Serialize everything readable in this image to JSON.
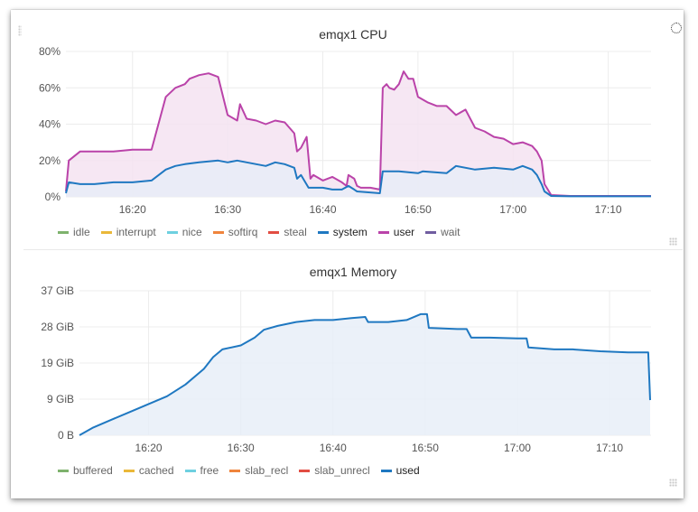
{
  "chart_data": [
    {
      "type": "area",
      "title": "emqx1 CPU",
      "y_tick_labels": [
        "0%",
        "20%",
        "40%",
        "60%",
        "80%"
      ],
      "ylim": [
        0,
        80
      ],
      "x_tick_labels": [
        "16:20",
        "16:30",
        "16:40",
        "16:50",
        "17:00",
        "17:10"
      ],
      "x_tick_minutes": [
        20,
        30,
        40,
        50,
        60,
        70
      ],
      "xlim": [
        13,
        74.5
      ],
      "legend": [
        "idle",
        "interrupt",
        "nice",
        "softirq",
        "steal",
        "system",
        "user",
        "wait"
      ],
      "legend_colors": [
        "#7eb26d",
        "#eab839",
        "#6ed0e0",
        "#ef843c",
        "#e24d42",
        "#1f78c1",
        "#ba43a9",
        "#705da0"
      ],
      "legend_active": [
        "system",
        "user"
      ],
      "series": [
        {
          "name": "user",
          "color": "#ba43a9",
          "fill": "#f5e3f1",
          "x": [
            13,
            13.3,
            14.5,
            16,
            18,
            20,
            22,
            23.5,
            24.5,
            25.5,
            26,
            27,
            28,
            29,
            30,
            31,
            31.3,
            32,
            33,
            34,
            35,
            36,
            37,
            37.3,
            37.7,
            38.3,
            38.7,
            39,
            40,
            41,
            42,
            42.5,
            42.7,
            43.3,
            43.6,
            44,
            45,
            46,
            46.3,
            46.7,
            47,
            47.5,
            48,
            48.5,
            49,
            49.5,
            50,
            51,
            52,
            53,
            54,
            55,
            56,
            57,
            58,
            59,
            60,
            61,
            62,
            62.5,
            63,
            63.3,
            64,
            66,
            70,
            74.5
          ],
          "values": [
            3,
            20,
            25,
            25,
            25,
            26,
            26,
            55,
            60,
            62,
            65,
            67,
            68,
            66,
            45,
            42,
            51,
            43,
            42,
            40,
            42,
            41,
            35,
            25,
            27,
            33,
            10,
            12,
            9,
            11,
            8,
            6,
            12,
            10,
            6,
            5,
            5,
            4,
            60,
            62,
            60,
            59,
            62,
            69,
            65,
            65,
            55,
            52,
            50,
            50,
            45,
            48,
            38,
            36,
            33,
            32,
            29,
            30,
            28,
            25,
            20,
            7,
            1,
            0.5,
            0.5,
            0.5
          ]
        },
        {
          "name": "system",
          "color": "#1f78c1",
          "fill": "#e8ecf7",
          "x": [
            13,
            13.3,
            14.5,
            16,
            18,
            20,
            22,
            23.5,
            24.5,
            25.5,
            27,
            29,
            30,
            31,
            32,
            33,
            34,
            35,
            36,
            37,
            37.3,
            37.7,
            38.5,
            40,
            41,
            42,
            42.7,
            43.3,
            43.6,
            46,
            46.3,
            48,
            50,
            50.5,
            53,
            54,
            56,
            58,
            60,
            61,
            62,
            62.5,
            63,
            63.3,
            64,
            66,
            70,
            74.5
          ],
          "values": [
            2,
            8,
            7,
            7,
            8,
            8,
            9,
            15,
            17,
            18,
            19,
            20,
            19,
            20,
            19,
            18,
            17,
            19,
            18,
            16,
            10,
            12,
            5,
            5,
            4,
            4,
            6,
            4,
            3,
            2,
            14,
            14,
            13,
            14,
            13,
            17,
            15,
            16,
            15,
            17,
            15,
            12,
            7,
            3,
            0.5,
            0.3,
            0.3,
            0.3
          ]
        }
      ]
    },
    {
      "type": "area",
      "title": "emqx1 Memory",
      "y_tick_labels": [
        "0 B",
        "9 GiB",
        "19 GiB",
        "28 GiB",
        "37 GiB"
      ],
      "ylim": [
        0,
        37
      ],
      "x_tick_labels": [
        "16:20",
        "16:30",
        "16:40",
        "16:50",
        "17:00",
        "17:10"
      ],
      "x_tick_minutes": [
        20,
        30,
        40,
        50,
        60,
        70
      ],
      "xlim": [
        12.5,
        74.5
      ],
      "legend": [
        "buffered",
        "cached",
        "free",
        "slab_recl",
        "slab_unrecl",
        "used"
      ],
      "legend_colors": [
        "#7eb26d",
        "#eab839",
        "#6ed0e0",
        "#ef843c",
        "#e24d42",
        "#1f78c1"
      ],
      "legend_active": [
        "used"
      ],
      "series": [
        {
          "name": "used",
          "color": "#1f78c1",
          "fill": "#e8eff8",
          "x": [
            12.5,
            14,
            16,
            18,
            20,
            22,
            24,
            26,
            27,
            28,
            30,
            31.5,
            32.5,
            34,
            36,
            38,
            40,
            42,
            43.5,
            43.8,
            46,
            48,
            49.5,
            50.2,
            50.4,
            53.5,
            54.5,
            55,
            57,
            60,
            61,
            61.2,
            64,
            66,
            69,
            72,
            74.2,
            74.4
          ],
          "values": [
            0,
            2,
            4,
            6,
            8,
            10,
            13,
            17,
            20,
            22,
            23,
            25,
            27,
            28,
            29,
            29.5,
            29.5,
            30,
            30.3,
            29,
            29,
            29.5,
            31,
            31,
            27.5,
            27.2,
            27.2,
            25,
            25,
            24.8,
            24.8,
            22.5,
            22,
            22,
            21.5,
            21.2,
            21.2,
            9
          ]
        }
      ]
    }
  ]
}
